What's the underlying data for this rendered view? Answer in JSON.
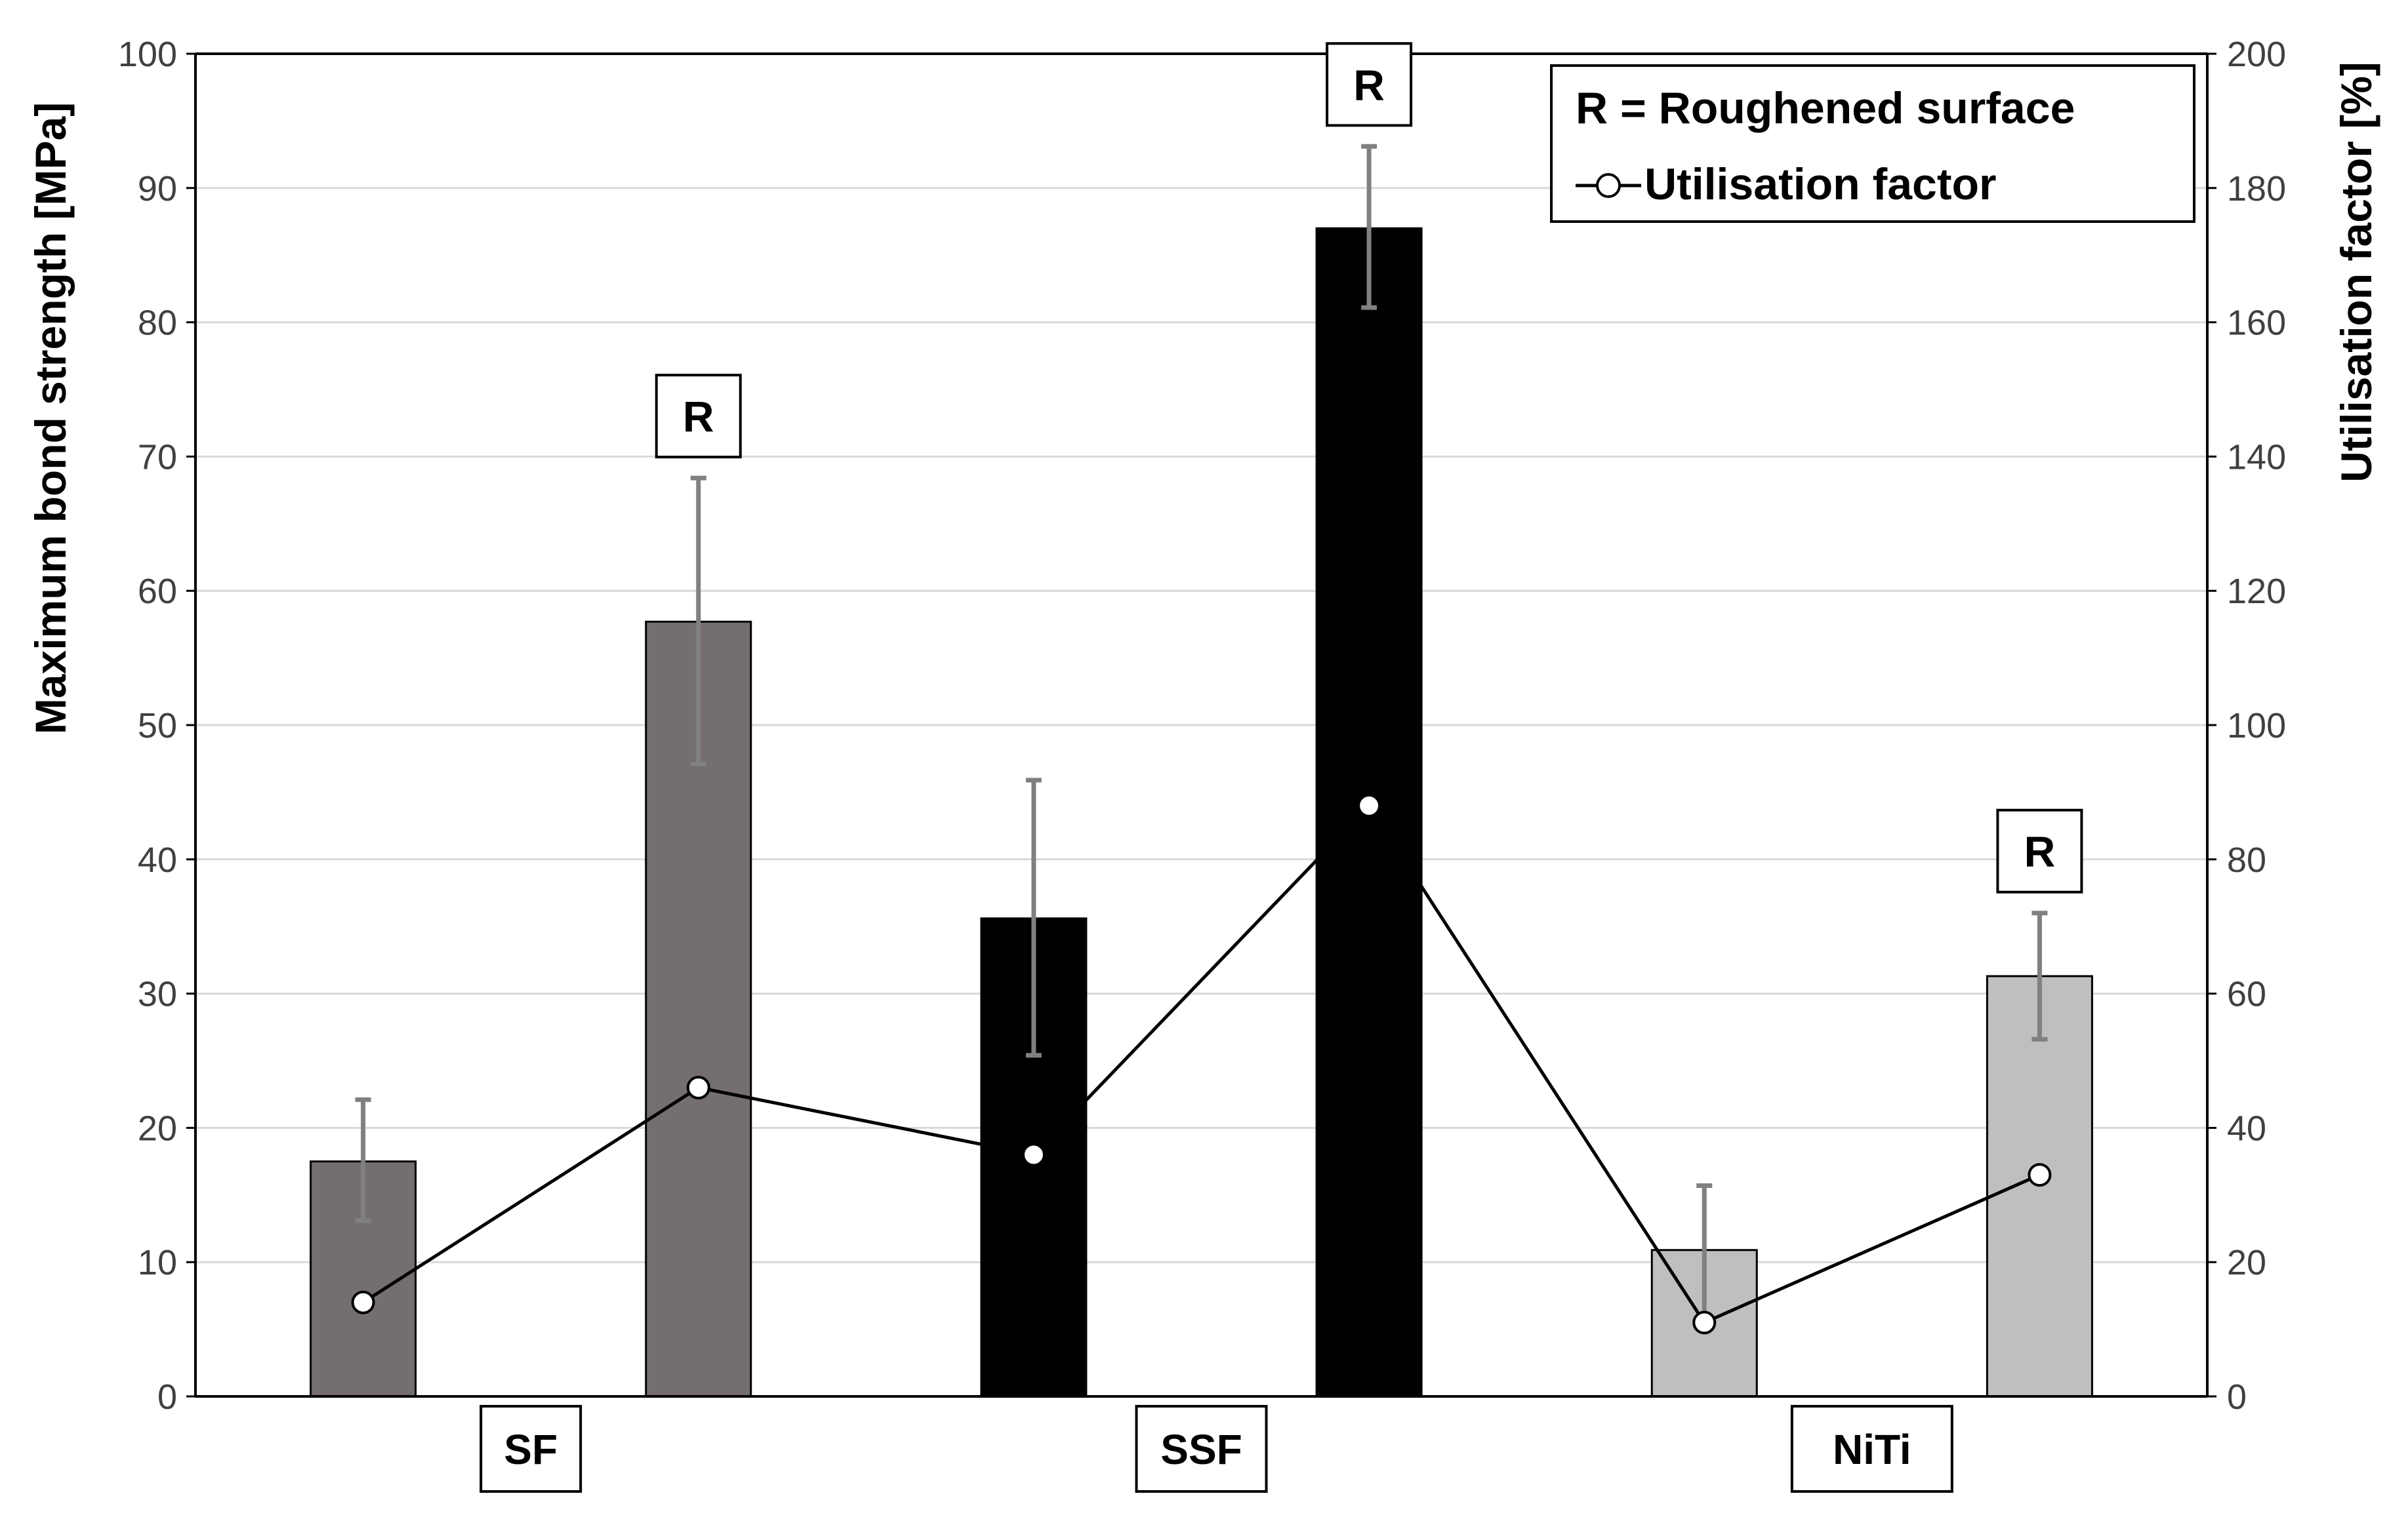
{
  "chart_data": {
    "type": "bar",
    "categories": [
      "SF",
      "SSF",
      "NiTi"
    ],
    "bar_labels": [
      "SF",
      "SF (R)",
      "SSF",
      "SSF (R)",
      "NiTi",
      "NiTi (R)"
    ],
    "bond_strength": [
      17.5,
      57.7,
      35.6,
      87.0,
      10.9,
      31.3
    ],
    "error_low": [
      13.1,
      47.1,
      25.4,
      81.1,
      5.6,
      26.6
    ],
    "error_high": [
      22.1,
      68.4,
      45.9,
      93.1,
      15.7,
      36.0
    ],
    "utilisation_factor": [
      14,
      46,
      36,
      88,
      11,
      33
    ],
    "roughened": [
      false,
      true,
      false,
      true,
      false,
      true
    ],
    "roughened_marker": "R",
    "bar_colors": [
      "#756E6E",
      "#756E6E",
      "#000000",
      "#000000",
      "#BFBFBF",
      "#BFBFBF"
    ],
    "error_bar_color": "#808080",
    "line_color": "#000000",
    "gridlines": true,
    "ylabel_left": "Maximum bond strength [MPa]",
    "ylabel_right": "Utilisation factor [%]",
    "ylim_left": [
      0,
      100
    ],
    "ylim_right": [
      0,
      200
    ],
    "yticks_left": [
      0,
      10,
      20,
      30,
      40,
      50,
      60,
      70,
      80,
      90,
      100
    ],
    "yticks_right": [
      0,
      20,
      40,
      60,
      80,
      100,
      120,
      140,
      160,
      180,
      200
    ],
    "legend": {
      "position": "top-right",
      "entries": [
        "R = Roughened surface",
        "Utilisation factor"
      ]
    }
  }
}
